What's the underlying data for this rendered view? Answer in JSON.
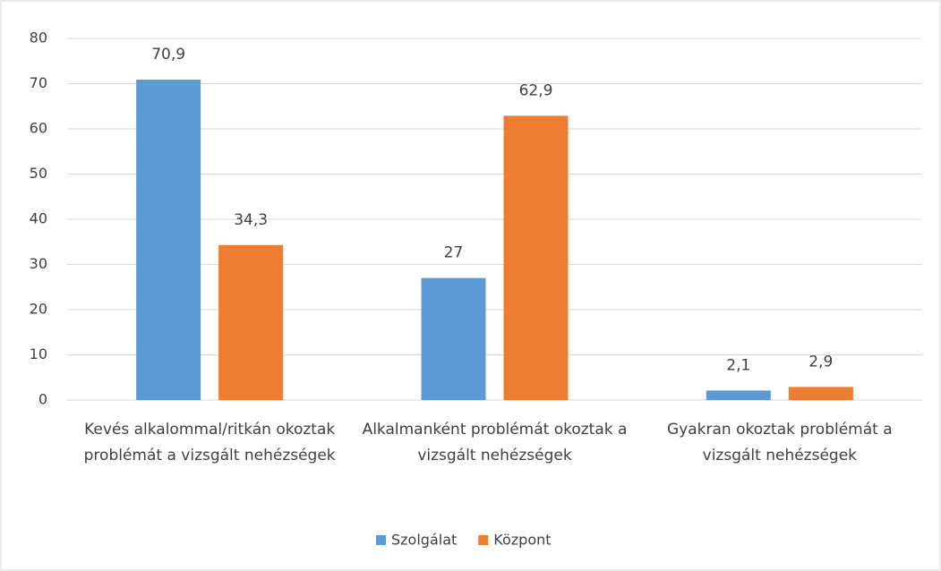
{
  "chart_data": {
    "type": "bar",
    "categories": [
      "Kevés alkalommal/ritkán okoztak problémát a vizsgált nehézségek",
      "Alkalmanként problémát okoztak a vizsgált nehézségek",
      "Gyakran okoztak problémát a vizsgált nehézségek"
    ],
    "series": [
      {
        "name": "Szolgálat",
        "color": "#5b9bd5",
        "values": [
          70.9,
          27,
          2.1
        ],
        "value_labels": [
          "70,9",
          "27",
          "2,1"
        ]
      },
      {
        "name": "Központ",
        "color": "#ed7d31",
        "values": [
          34.3,
          62.9,
          2.9
        ],
        "value_labels": [
          "34,3",
          "62,9",
          "2,9"
        ]
      }
    ],
    "ylim": [
      0,
      80
    ],
    "yticks": [
      0,
      10,
      20,
      30,
      40,
      50,
      60,
      70,
      80
    ],
    "grid": true,
    "legend": "bottom"
  }
}
